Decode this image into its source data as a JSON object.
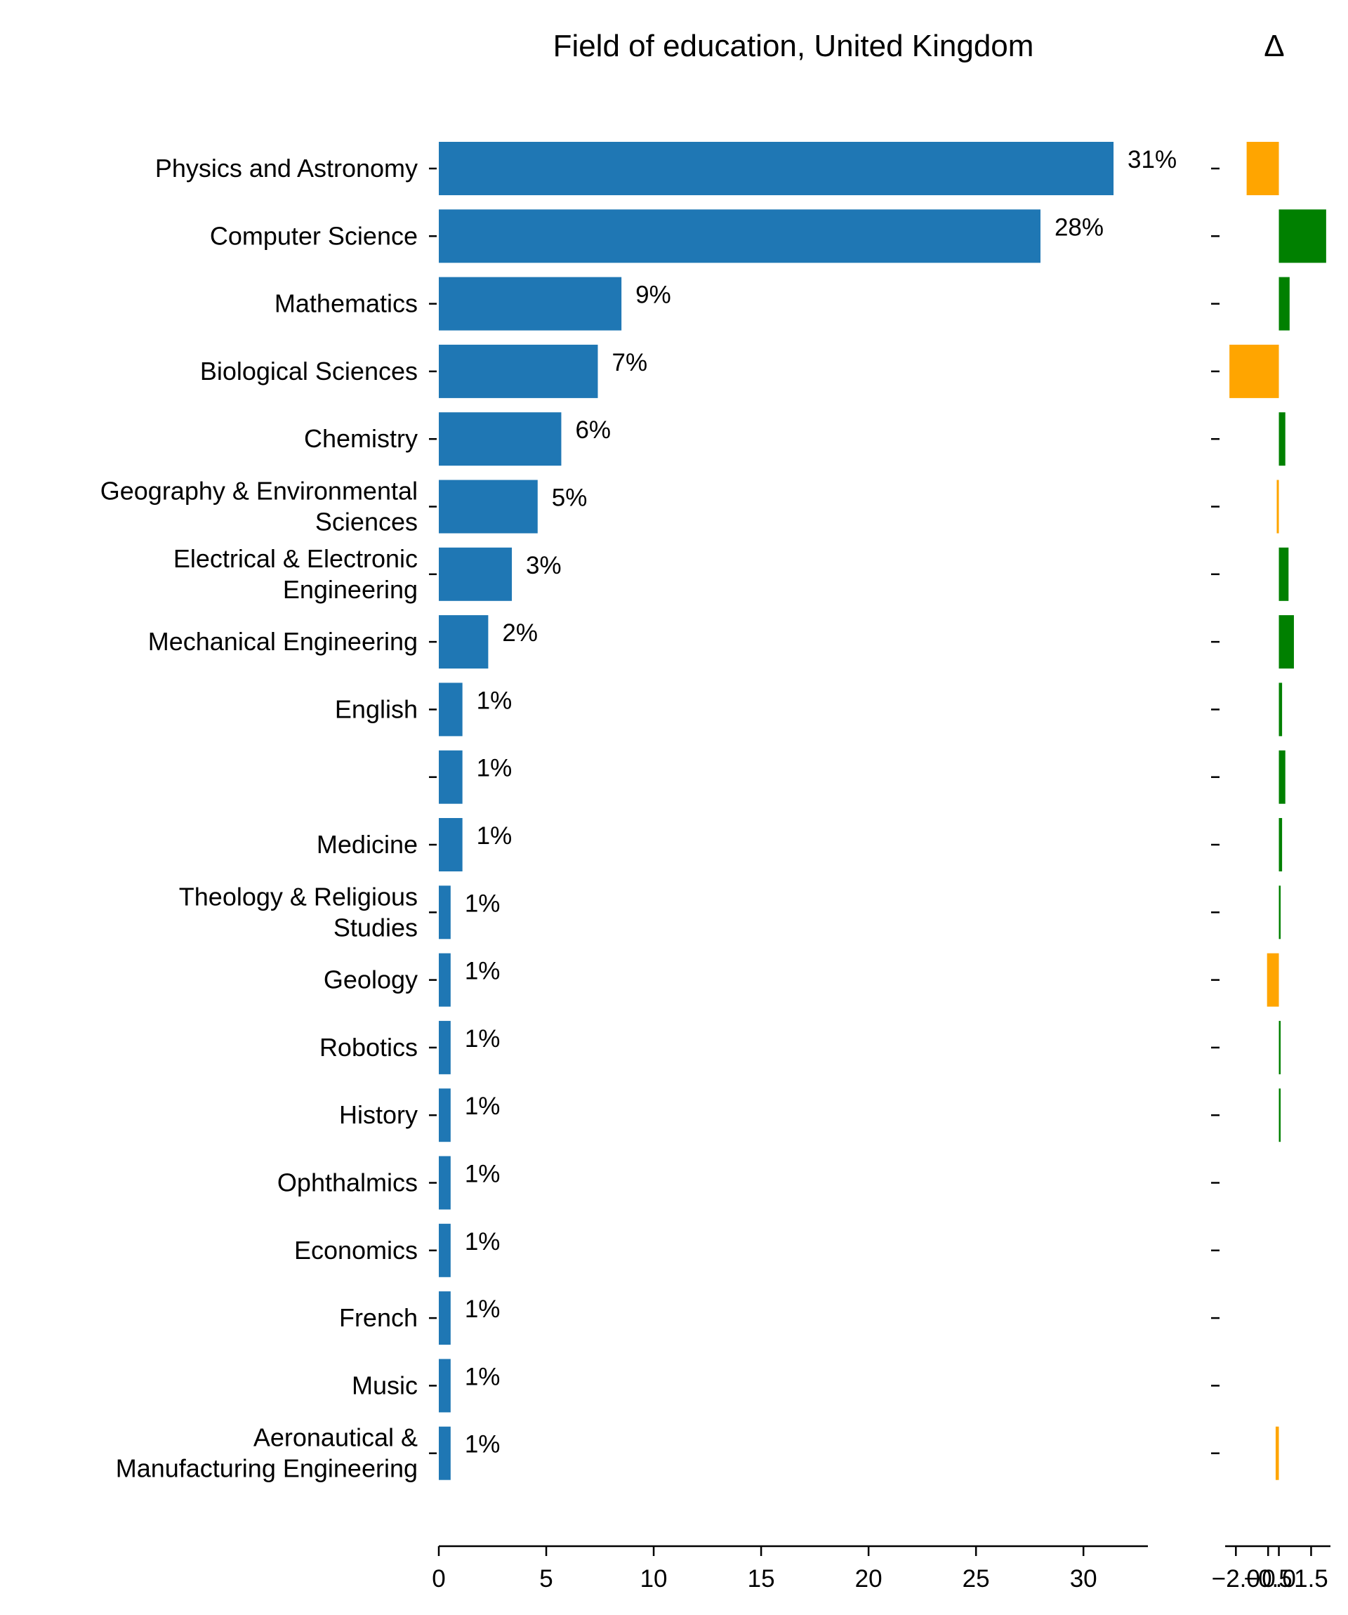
{
  "chart_data": {
    "type": "bar",
    "orientation": "horizontal",
    "title": "Field of education, United Kingdom",
    "categories": [
      "Physics and Astronomy",
      "Computer Science",
      "Mathematics",
      "Biological Sciences",
      "Chemistry",
      "Geography & Environmental Sciences",
      "Electrical & Electronic Engineering",
      "Mechanical Engineering",
      "English",
      "",
      "Medicine",
      "Theology & Religious Studies",
      "Geology",
      "Robotics",
      "History",
      "Ophthalmics",
      "Economics",
      "French",
      "Music",
      "Aeronautical & Manufacturing Engineering"
    ],
    "values": [
      31.4,
      28.0,
      8.5,
      7.4,
      5.7,
      4.6,
      3.4,
      2.3,
      1.1,
      1.1,
      1.1,
      0.55,
      0.55,
      0.55,
      0.55,
      0.55,
      0.55,
      0.55,
      0.55,
      0.55
    ],
    "value_labels": [
      "31%",
      "28%",
      "9%",
      "7%",
      "6%",
      "5%",
      "3%",
      "2%",
      "1%",
      "1%",
      "1%",
      "1%",
      "1%",
      "1%",
      "1%",
      "1%",
      "1%",
      "1%",
      "1%",
      "1%"
    ],
    "xlim": [
      0,
      33
    ],
    "xticks": [
      0,
      5,
      10,
      15,
      20,
      25,
      30
    ],
    "bar_color": "#1f77b4",
    "grid": false,
    "delta": {
      "title": "Δ",
      "values": [
        -1.5,
        2.2,
        0.5,
        -2.3,
        0.3,
        -0.1,
        0.45,
        0.7,
        0.15,
        0.3,
        0.15,
        0.05,
        -0.55,
        0.05,
        0.05,
        null,
        null,
        null,
        null,
        -0.15
      ],
      "xlim": [
        -2.5,
        2.4
      ],
      "xticks": [
        -2.0,
        -0.5,
        0.0,
        1.5
      ],
      "xtick_labels": [
        "−2.0",
        "−0.5",
        "0.0",
        "1.5"
      ],
      "positive_color": "#008000",
      "negative_color": "#ffa500"
    }
  }
}
